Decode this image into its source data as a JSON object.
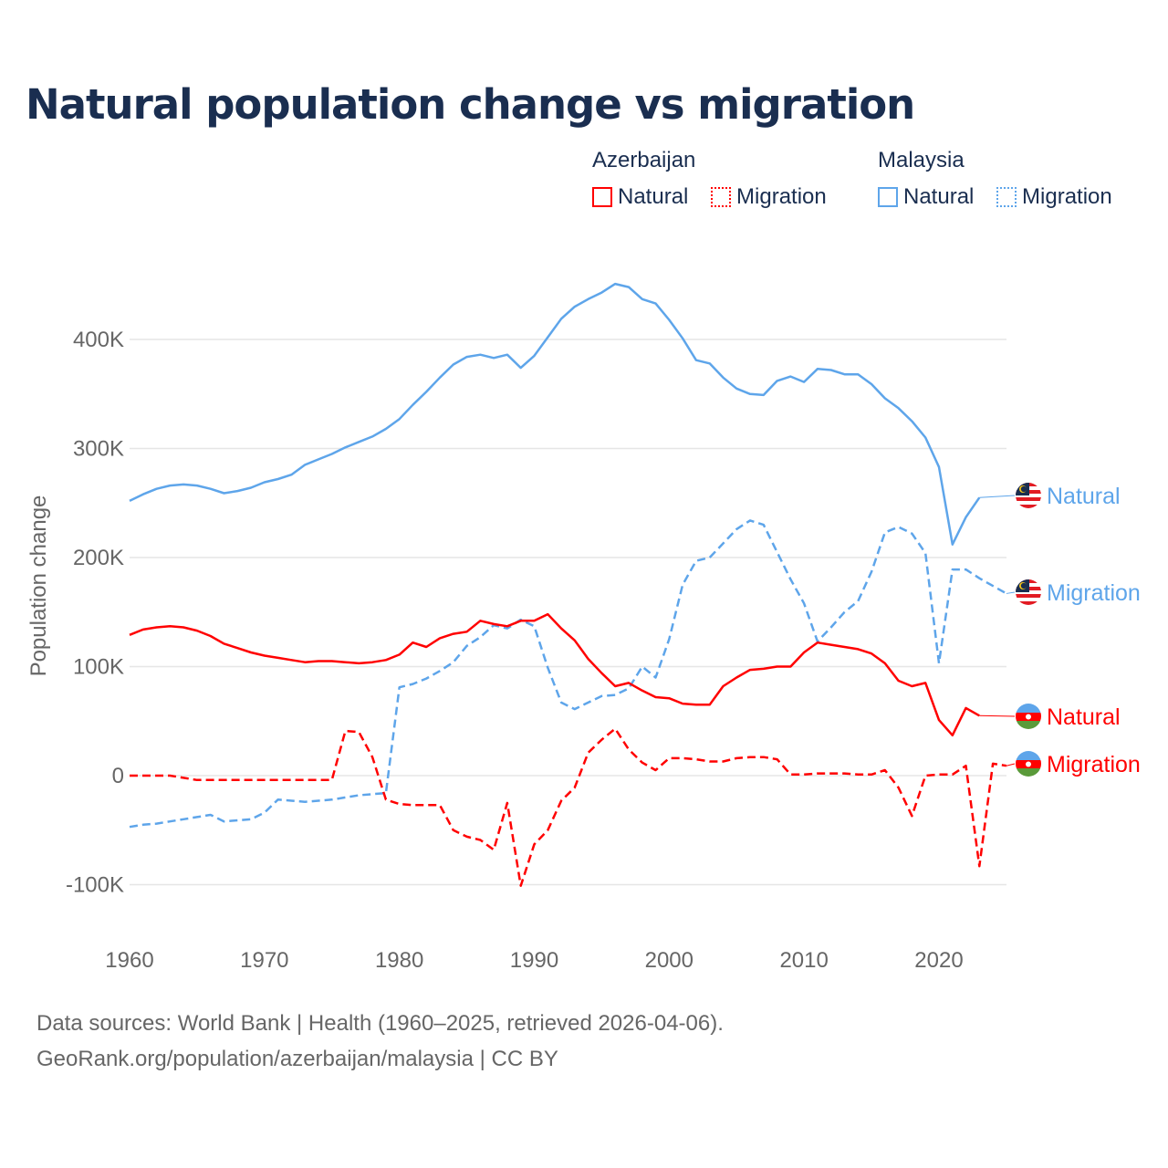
{
  "title": "Natural population change vs migration",
  "legend": [
    {
      "group": "Azerbaijan",
      "color": "#ff0000",
      "items": [
        {
          "label": "Natural",
          "style": "solid"
        },
        {
          "label": "Migration",
          "style": "dotted"
        }
      ]
    },
    {
      "group": "Malaysia",
      "color": "#5ea5ea",
      "items": [
        {
          "label": "Natural",
          "style": "solid"
        },
        {
          "label": "Migration",
          "style": "dotted"
        }
      ]
    }
  ],
  "footer": {
    "line1": "Data sources: World Bank | Health (1960–2025, retrieved 2026-04-06).",
    "line2": "GeoRank.org/population/azerbaijan/malaysia | CC BY"
  },
  "chart_data": {
    "type": "line",
    "title": "Natural population change vs migration",
    "xlabel": "",
    "ylabel": "Population change",
    "xlim": [
      1960,
      2025
    ],
    "ylim": [
      -100000,
      400000
    ],
    "x_ticks": [
      1960,
      1970,
      1980,
      1990,
      2000,
      2010,
      2020
    ],
    "x_tick_labels": [
      "1960",
      "1970",
      "1980",
      "1990",
      "2000",
      "2010",
      "2020"
    ],
    "y_ticks": [
      -100000,
      0,
      100000,
      200000,
      300000,
      400000
    ],
    "y_tick_labels": [
      "-100K",
      "0",
      "100K",
      "200K",
      "300K",
      "400K"
    ],
    "grid": true,
    "start_year": 1960,
    "units": "thousands",
    "series": [
      {
        "name": "Malaysia Natural",
        "end_label": "Natural",
        "color": "#5ea5ea",
        "dash": false,
        "flag": "malaysia",
        "values": [
          252,
          258,
          263,
          266,
          267,
          266,
          263,
          259,
          261,
          264,
          269,
          272,
          276,
          285,
          290,
          295,
          301,
          306,
          311,
          318,
          327,
          340,
          352,
          365,
          377,
          384,
          386,
          383,
          386,
          374,
          385,
          402,
          419,
          430,
          437,
          443,
          451,
          448,
          437,
          433,
          418,
          401,
          381,
          378,
          365,
          355,
          350,
          349,
          362,
          366,
          361,
          373,
          372,
          368,
          368,
          359,
          346,
          337,
          325,
          310,
          283,
          212,
          237,
          255
        ]
      },
      {
        "name": "Malaysia Migration",
        "end_label": "Migration",
        "color": "#5ea5ea",
        "dash": true,
        "flag": "malaysia",
        "values": [
          -47,
          -45,
          -44,
          -42,
          -40,
          -38,
          -36,
          -42,
          -41,
          -40,
          -34,
          -22,
          -23,
          -24,
          -23,
          -22,
          -20,
          -18,
          -17,
          -16,
          81,
          84,
          89,
          96,
          104,
          119,
          127,
          138,
          135,
          143,
          137,
          99,
          67,
          61,
          67,
          73,
          74,
          80,
          100,
          90,
          125,
          175,
          197,
          200,
          213,
          226,
          234,
          230,
          205,
          180,
          158,
          123,
          136,
          150,
          160,
          187,
          223,
          228,
          222,
          204,
          103,
          189,
          189,
          181,
          174,
          167
        ]
      },
      {
        "name": "Azerbaijan Natural",
        "end_label": "Natural",
        "color": "#ff0000",
        "dash": false,
        "flag": "azerbaijan",
        "values": [
          129,
          134,
          136,
          137,
          136,
          133,
          128,
          121,
          117,
          113,
          110,
          108,
          106,
          104,
          105,
          105,
          104,
          103,
          104,
          106,
          111,
          122,
          118,
          126,
          130,
          132,
          142,
          139,
          137,
          142,
          142,
          148,
          135,
          124,
          107,
          94,
          82,
          85,
          78,
          72,
          71,
          66,
          65,
          65,
          82,
          90,
          97,
          98,
          100,
          100,
          113,
          122,
          120,
          118,
          116,
          112,
          103,
          87,
          82,
          85,
          51,
          37,
          62,
          55
        ]
      },
      {
        "name": "Azerbaijan Migration",
        "end_label": "Migration",
        "color": "#ff0000",
        "dash": true,
        "flag": "azerbaijan",
        "values": [
          0,
          0,
          0,
          0,
          -2,
          -4,
          -4,
          -4,
          -4,
          -4,
          -4,
          -4,
          -4,
          -4,
          -4,
          -4,
          41,
          40,
          17,
          -22,
          -26,
          -27,
          -27,
          -27,
          -50,
          -56,
          -59,
          -68,
          -25,
          -101,
          -63,
          -50,
          -23,
          -11,
          21,
          33,
          43,
          24,
          12,
          5,
          16,
          16,
          15,
          13,
          13,
          16,
          17,
          17,
          15,
          1,
          1,
          2,
          2,
          2,
          1,
          1,
          5,
          -11,
          -37,
          0,
          1,
          1,
          9,
          -83,
          11,
          9
        ]
      }
    ],
    "end_label_y": [
      543,
      649,
      785,
      837
    ]
  }
}
